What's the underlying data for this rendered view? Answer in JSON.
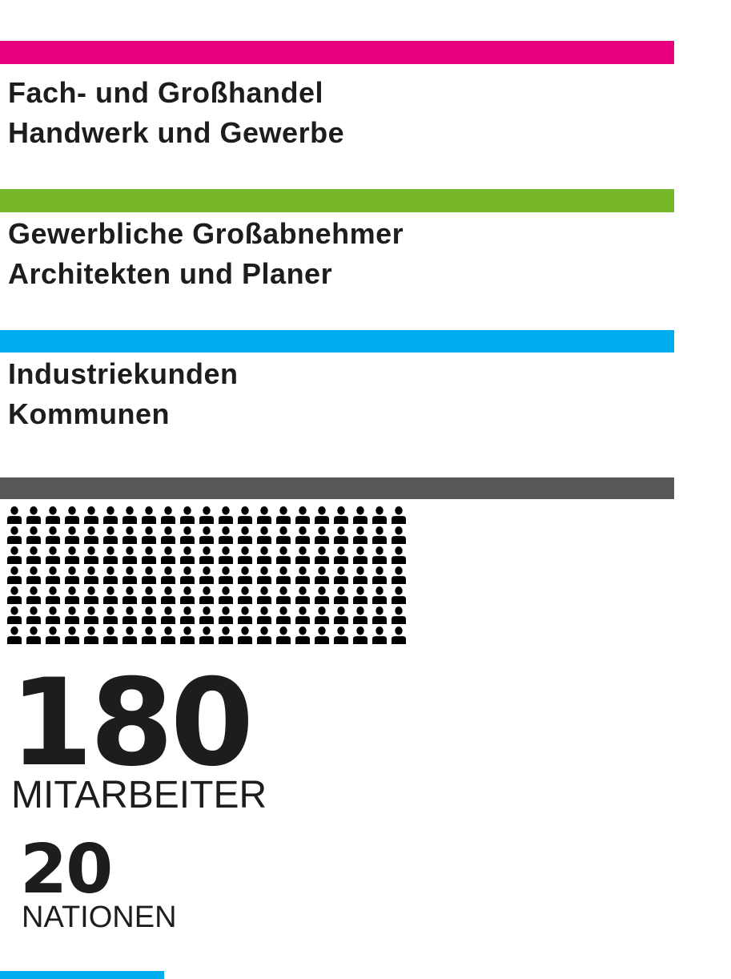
{
  "page": {
    "background": "#ffffff",
    "text_color": "#1d1d1b"
  },
  "sections": [
    {
      "bar_color": "#e6007e",
      "lines": [
        "Fach- und Großhandel",
        "Handwerk und Gewerbe"
      ]
    },
    {
      "bar_color": "#76b82a",
      "lines": [
        "Gewerbliche Großabnehmer",
        "Architekten und Planer"
      ]
    },
    {
      "bar_color": "#00aeef",
      "lines": [
        "Industriekunden",
        "Kommunen"
      ]
    }
  ],
  "divider": {
    "bar_color": "#575756"
  },
  "pictogram": {
    "icon": "person-icon",
    "rows": 7,
    "per_row": 21,
    "icon_color": "#000000"
  },
  "stats": [
    {
      "value": "180",
      "label": "MITARBEITER"
    },
    {
      "value": "20",
      "label": "NATIONEN"
    }
  ],
  "footer": {
    "partial_bar_color": "#00aeef"
  }
}
